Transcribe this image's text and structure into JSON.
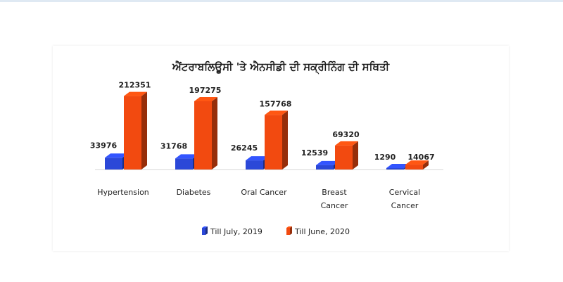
{
  "chart_data": {
    "type": "bar",
    "title": "ਐਂਟਰਾਬਲਿਊਸੀ 'ਤੇ ਐਨਸੀਡੀ ਦੀ ਸਕ੍ਰੀਨਿੰਗ ਦੀ ਸਥਿਤੀ",
    "categories": [
      [
        "Hypertension"
      ],
      [
        "Diabetes"
      ],
      [
        "Oral Cancer"
      ],
      [
        "Breast",
        "Cancer"
      ],
      [
        "Cervical",
        "Cancer"
      ]
    ],
    "series": [
      {
        "name": "Till July, 2019",
        "color": "#2b48d8",
        "values": [
          33976,
          31768,
          26245,
          12539,
          1290
        ]
      },
      {
        "name": "Till June, 2020",
        "color": "#f24a10",
        "values": [
          212351,
          197275,
          157768,
          69320,
          14067
        ]
      }
    ],
    "ylim": [
      0,
      240000
    ],
    "legend": "bottom",
    "grid": false,
    "style": "3d-bar"
  }
}
